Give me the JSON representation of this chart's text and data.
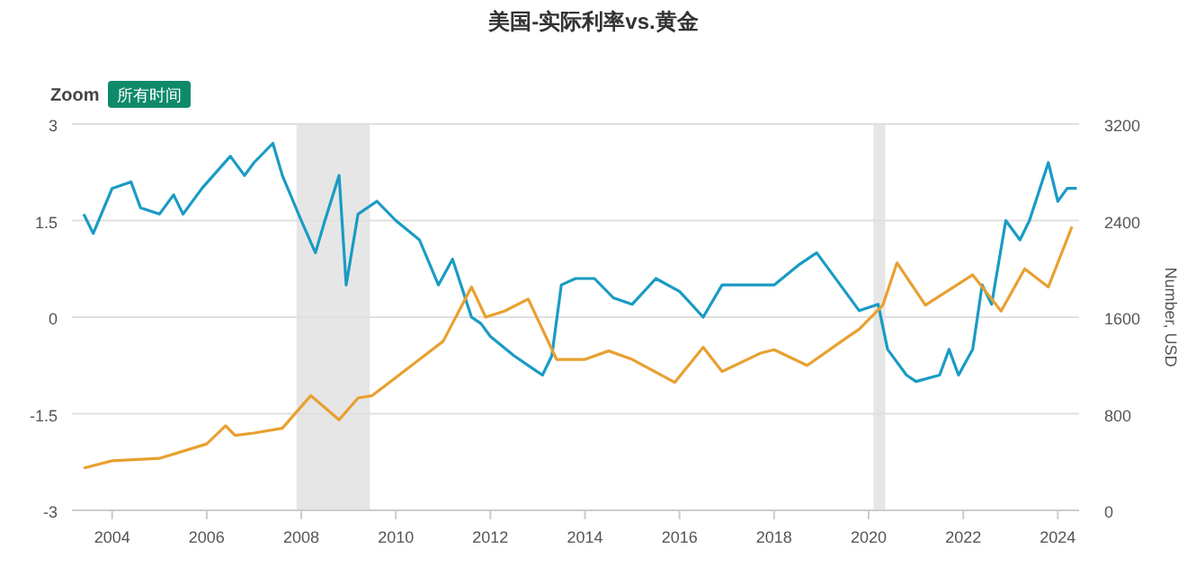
{
  "chart_data": {
    "type": "line",
    "title": "美国-实际利率vs.黄金",
    "y2label": "Number, USD",
    "annotations": [
      "Zoom",
      "所有时间"
    ],
    "xlim": [
      2003.15,
      2024.45
    ],
    "xticks": [
      {
        "value": 2004,
        "label": "2004"
      },
      {
        "value": 2006,
        "label": "2006"
      },
      {
        "value": 2008,
        "label": "2008"
      },
      {
        "value": 2010,
        "label": "2010"
      },
      {
        "value": 2012,
        "label": "2012"
      },
      {
        "value": 2014,
        "label": "2014"
      },
      {
        "value": 2016,
        "label": "2016"
      },
      {
        "value": 2018,
        "label": "2018"
      },
      {
        "value": 2020,
        "label": "2020"
      },
      {
        "value": 2022,
        "label": "2022"
      },
      {
        "value": 2024,
        "label": "2024"
      }
    ],
    "ylim": [
      -3,
      3
    ],
    "yticks": [
      -3,
      -1.5,
      0,
      1.5,
      3
    ],
    "y2lim": [
      0,
      3200
    ],
    "y2ticks": [
      0,
      800,
      1600,
      2400,
      3200
    ],
    "grid": "y",
    "bands": [
      {
        "axis": "x",
        "from": 2007.9,
        "to": 2009.45,
        "color": "#e6e6e6"
      },
      {
        "axis": "x",
        "from": 2020.1,
        "to": 2020.35,
        "color": "#e6e6e6"
      }
    ],
    "series": [
      {
        "color": "#1a9bc4",
        "x": [
          2003.4,
          2003.6,
          2004.0,
          2004.4,
          2004.6,
          2005.0,
          2005.3,
          2005.5,
          2005.9,
          2006.5,
          2006.8,
          2007.0,
          2007.4,
          2007.6,
          2008.0,
          2008.3,
          2008.5,
          2008.8,
          2008.95,
          2009.2,
          2009.6,
          2010.0,
          2010.5,
          2010.9,
          2011.2,
          2011.6,
          2011.8,
          2012.0,
          2012.5,
          2012.9,
          2013.1,
          2013.3,
          2013.5,
          2013.8,
          2014.2,
          2014.6,
          2015.0,
          2015.5,
          2016.0,
          2016.5,
          2016.9,
          2017.5,
          2018.0,
          2018.5,
          2018.9,
          2019.4,
          2019.8,
          2020.2,
          2020.4,
          2020.8,
          2021.0,
          2021.5,
          2021.7,
          2021.9,
          2022.2,
          2022.4,
          2022.6,
          2022.9,
          2023.2,
          2023.4,
          2023.8,
          2024.0,
          2024.2,
          2024.4
        ],
        "values": [
          1.6,
          1.3,
          2.0,
          2.1,
          1.7,
          1.6,
          1.9,
          1.6,
          2.0,
          2.5,
          2.2,
          2.4,
          2.7,
          2.2,
          1.5,
          1.0,
          1.5,
          2.2,
          0.5,
          1.6,
          1.8,
          1.5,
          1.2,
          0.5,
          0.9,
          0.0,
          -0.1,
          -0.3,
          -0.6,
          -0.8,
          -0.9,
          -0.6,
          0.5,
          0.6,
          0.6,
          0.3,
          0.2,
          0.6,
          0.4,
          0.0,
          0.5,
          0.5,
          0.5,
          0.8,
          1.0,
          0.5,
          0.1,
          0.2,
          -0.5,
          -0.9,
          -1.0,
          -0.9,
          -0.5,
          -0.9,
          -0.5,
          0.5,
          0.2,
          1.5,
          1.2,
          1.5,
          2.4,
          1.8,
          2.0,
          2.0
        ]
      },
      {
        "color": "#e8a030",
        "axis": "y2",
        "x": [
          2003.4,
          2004.0,
          2005.0,
          2006.0,
          2006.4,
          2006.6,
          2007.0,
          2007.6,
          2008.2,
          2008.8,
          2009.2,
          2009.5,
          2010.0,
          2010.5,
          2011.0,
          2011.6,
          2011.9,
          2012.3,
          2012.8,
          2013.4,
          2014.0,
          2014.5,
          2015.0,
          2015.9,
          2016.5,
          2016.9,
          2017.7,
          2018.0,
          2018.7,
          2019.5,
          2019.8,
          2020.3,
          2020.6,
          2021.2,
          2021.6,
          2022.2,
          2022.8,
          2023.3,
          2023.8,
          2024.0,
          2024.3
        ],
        "values": [
          350,
          410,
          430,
          550,
          700,
          620,
          640,
          680,
          950,
          750,
          930,
          950,
          1100,
          1250,
          1400,
          1850,
          1600,
          1650,
          1750,
          1250,
          1250,
          1320,
          1250,
          1060,
          1350,
          1150,
          1300,
          1330,
          1200,
          1420,
          1500,
          1700,
          2050,
          1700,
          1800,
          1950,
          1650,
          2000,
          1850,
          2050,
          2350
        ]
      }
    ]
  }
}
